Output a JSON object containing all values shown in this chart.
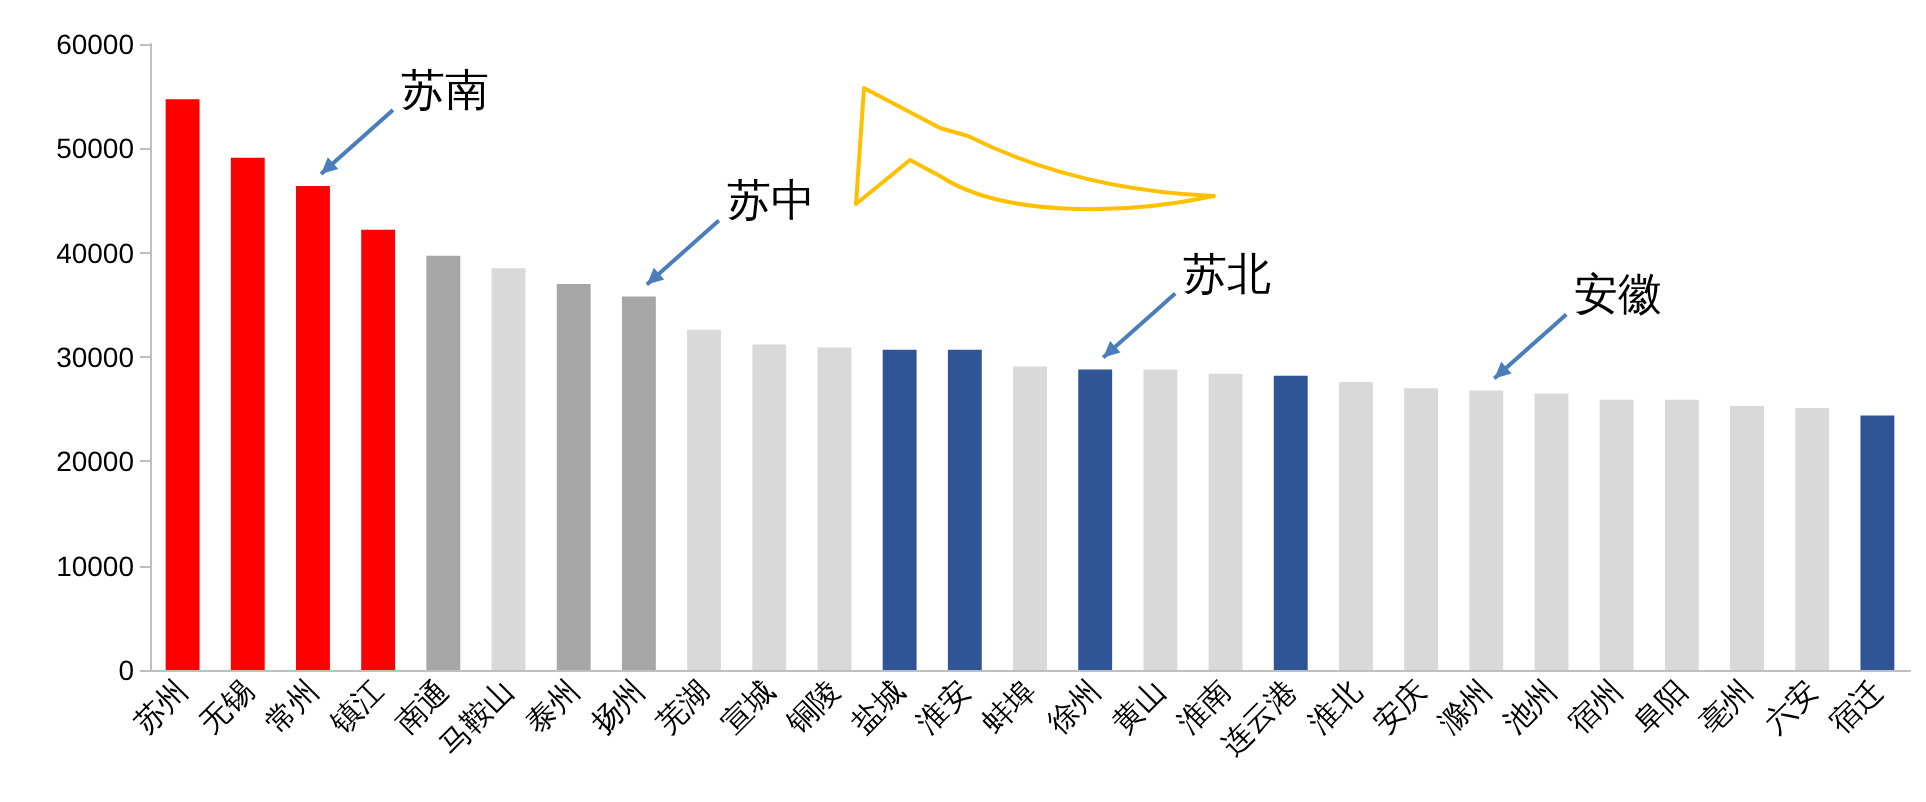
{
  "chart_data": {
    "type": "bar",
    "categories": [
      "苏州",
      "无锡",
      "常州",
      "镇江",
      "南通",
      "马鞍山",
      "泰州",
      "扬州",
      "芜湖",
      "宣城",
      "铜陵",
      "盐城",
      "淮安",
      "蚌埠",
      "徐州",
      "黄山",
      "淮南",
      "连云港",
      "淮北",
      "安庆",
      "滁州",
      "池州",
      "宿州",
      "阜阳",
      "亳州",
      "六安",
      "宿迁"
    ],
    "values": [
      54700,
      49100,
      46400,
      42200,
      39700,
      38500,
      37000,
      35800,
      32600,
      31200,
      30900,
      30700,
      30700,
      29100,
      28800,
      28800,
      28400,
      28200,
      27600,
      27000,
      26800,
      26500,
      25900,
      25900,
      25300,
      25100,
      24400
    ],
    "colors": [
      "#ff0000",
      "#ff0000",
      "#ff0000",
      "#ff0000",
      "#a6a6a6",
      "#d9d9d9",
      "#a6a6a6",
      "#a6a6a6",
      "#d9d9d9",
      "#d9d9d9",
      "#d9d9d9",
      "#2f5597",
      "#2f5597",
      "#d9d9d9",
      "#2f5597",
      "#d9d9d9",
      "#d9d9d9",
      "#2f5597",
      "#d9d9d9",
      "#d9d9d9",
      "#d9d9d9",
      "#d9d9d9",
      "#d9d9d9",
      "#d9d9d9",
      "#d9d9d9",
      "#d9d9d9",
      "#2f5597"
    ],
    "ylim": [
      0,
      60000
    ],
    "yticks": [
      0,
      10000,
      20000,
      30000,
      40000,
      50000,
      60000
    ],
    "grid": false,
    "annotations": [
      {
        "text": "苏南",
        "x": "常州",
        "y": 46400
      },
      {
        "text": "苏中",
        "x": "扬州",
        "y": 35800
      },
      {
        "text": "苏北",
        "x": "徐州",
        "y": 28800
      },
      {
        "text": "安徽",
        "x": "滁州",
        "y": 26800
      }
    ]
  }
}
